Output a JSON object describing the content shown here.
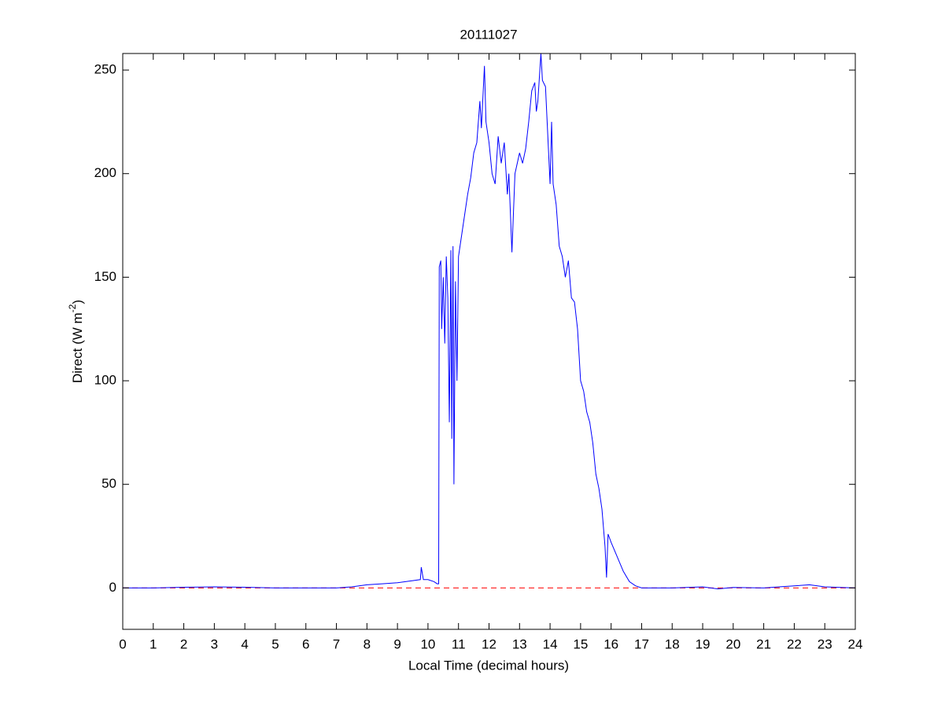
{
  "chart_data": {
    "type": "line",
    "title": "20111027",
    "xlabel": "Local Time (decimal hours)",
    "ylabel_parts": [
      "Direct (W m",
      "-2",
      ")"
    ],
    "xlim": [
      0,
      24
    ],
    "xticks": [
      0,
      1,
      2,
      3,
      4,
      5,
      6,
      7,
      8,
      9,
      10,
      11,
      12,
      13,
      14,
      15,
      16,
      17,
      18,
      19,
      20,
      21,
      22,
      23,
      24
    ],
    "ylim": [
      -20,
      258
    ],
    "yticks": [
      0,
      50,
      100,
      150,
      200,
      250
    ],
    "reference_line": {
      "y": 0,
      "color": "#ff0000"
    },
    "series": [
      {
        "name": "Direct",
        "color": "#0000ff",
        "x": [
          0,
          1,
          2,
          3,
          4,
          5,
          6,
          7,
          7.5,
          8,
          8.5,
          9,
          9.5,
          9.75,
          9.78,
          9.85,
          10,
          10.2,
          10.3,
          10.35,
          10.37,
          10.42,
          10.45,
          10.5,
          10.55,
          10.6,
          10.65,
          10.7,
          10.75,
          10.78,
          10.82,
          10.85,
          10.9,
          10.95,
          11,
          11.05,
          11.2,
          11.3,
          11.4,
          11.5,
          11.6,
          11.7,
          11.75,
          11.85,
          11.9,
          12,
          12.1,
          12.2,
          12.3,
          12.4,
          12.5,
          12.6,
          12.65,
          12.75,
          12.85,
          13,
          13.1,
          13.2,
          13.3,
          13.4,
          13.5,
          13.55,
          13.6,
          13.7,
          13.75,
          13.85,
          14,
          14.05,
          14.1,
          14.2,
          14.3,
          14.4,
          14.5,
          14.6,
          14.7,
          14.8,
          14.9,
          15,
          15.1,
          15.2,
          15.3,
          15.4,
          15.5,
          15.6,
          15.7,
          15.8,
          15.85,
          15.9,
          16,
          16.2,
          16.4,
          16.6,
          16.8,
          17,
          18,
          19,
          19.5,
          20,
          21,
          21.5,
          22,
          22.5,
          23,
          24
        ],
        "values": [
          0,
          0,
          0.3,
          0.5,
          0.3,
          0,
          0,
          0,
          0.5,
          1.5,
          2,
          2.5,
          3.5,
          4,
          10,
          4,
          4,
          3,
          2,
          2,
          155,
          158,
          125,
          150,
          118,
          160,
          140,
          80,
          163,
          72,
          165,
          50,
          148,
          100,
          160,
          165,
          180,
          190,
          198,
          210,
          215,
          235,
          222,
          252,
          225,
          215,
          200,
          195,
          218,
          205,
          215,
          190,
          200,
          162,
          200,
          210,
          205,
          212,
          225,
          240,
          244,
          230,
          235,
          258,
          245,
          242,
          195,
          225,
          195,
          185,
          165,
          160,
          150,
          158,
          140,
          138,
          125,
          100,
          95,
          85,
          80,
          70,
          55,
          48,
          38,
          20,
          5,
          26,
          22,
          15,
          8,
          3,
          1,
          0,
          0,
          0.5,
          -0.5,
          0.2,
          0,
          0.5,
          1,
          1.5,
          0.5,
          0
        ]
      }
    ]
  }
}
